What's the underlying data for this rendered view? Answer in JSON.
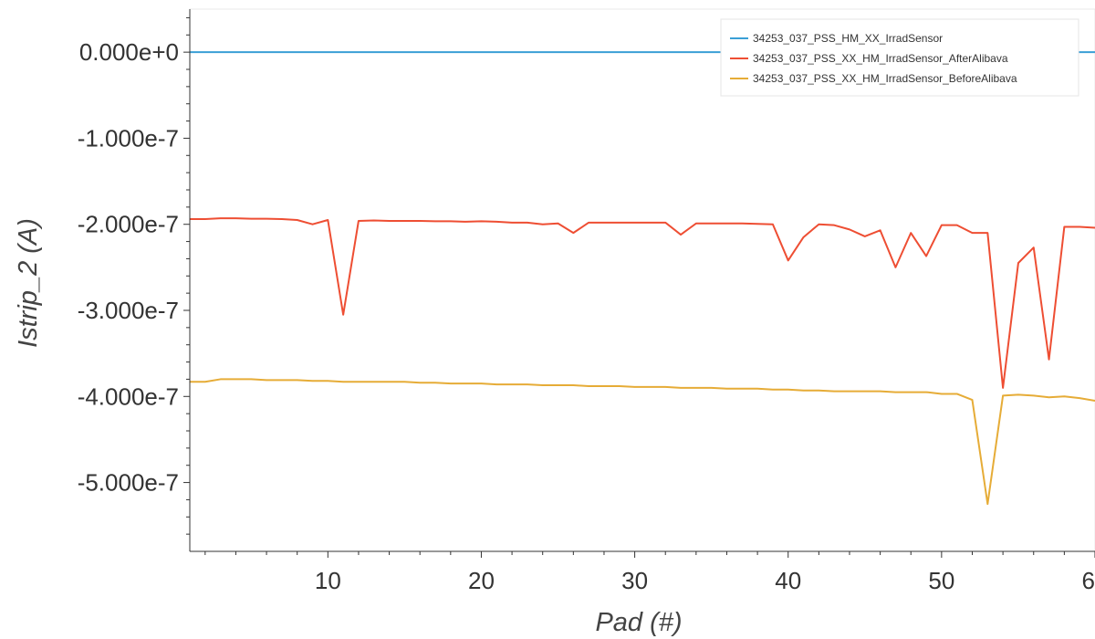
{
  "chart_data": {
    "type": "line",
    "title": "",
    "xlabel": "Pad (#)",
    "ylabel": "Istrip_2 (A)",
    "xlim": [
      1,
      60
    ],
    "ylim": [
      -5.8e-07,
      5e-08
    ],
    "x_ticks": [
      10,
      20,
      30,
      40,
      50,
      60
    ],
    "y_ticks": [
      0,
      -1e-07,
      -2e-07,
      -3e-07,
      -4e-07,
      -5e-07
    ],
    "x_tick_labels": [
      "10",
      "20",
      "30",
      "40",
      "50",
      "60"
    ],
    "y_tick_labels": [
      "0.000e+0",
      "-1.000e-7",
      "-2.000e-7",
      "-3.000e-7",
      "-4.000e-7",
      "-5.000e-7"
    ],
    "legend_position": "top-right",
    "grid": false,
    "x": [
      1,
      2,
      3,
      4,
      5,
      6,
      7,
      8,
      9,
      10,
      11,
      12,
      13,
      14,
      15,
      16,
      17,
      18,
      19,
      20,
      21,
      22,
      23,
      24,
      25,
      26,
      27,
      28,
      29,
      30,
      31,
      32,
      33,
      34,
      35,
      36,
      37,
      38,
      39,
      40,
      41,
      42,
      43,
      44,
      45,
      46,
      47,
      48,
      49,
      50,
      51,
      52,
      53,
      54,
      55,
      56,
      57,
      58,
      59,
      60
    ],
    "series": [
      {
        "name": "34253_037_PSS_HM_XX_IrradSensor",
        "color": "#3a9fd6",
        "values": [
          0,
          0,
          0,
          0,
          0,
          0,
          0,
          0,
          0,
          0,
          0,
          0,
          0,
          0,
          0,
          0,
          0,
          0,
          0,
          0,
          0,
          0,
          0,
          0,
          0,
          0,
          0,
          0,
          0,
          0,
          0,
          0,
          0,
          0,
          0,
          0,
          0,
          0,
          0,
          0,
          0,
          0,
          0,
          0,
          0,
          0,
          0,
          0,
          0,
          0,
          0,
          0,
          0,
          0,
          0,
          0,
          0,
          0,
          0,
          0
        ]
      },
      {
        "name": "34253_037_PSS_XX_HM_IrradSensor_AfterAlibava",
        "color": "#ee4e33",
        "values": [
          -1.94e-07,
          -1.94e-07,
          -1.93e-07,
          -1.93e-07,
          -1.935e-07,
          -1.935e-07,
          -1.94e-07,
          -1.95e-07,
          -2e-07,
          -1.95e-07,
          -3.05e-07,
          -1.96e-07,
          -1.955e-07,
          -1.96e-07,
          -1.96e-07,
          -1.96e-07,
          -1.965e-07,
          -1.965e-07,
          -1.97e-07,
          -1.965e-07,
          -1.97e-07,
          -1.98e-07,
          -1.98e-07,
          -2e-07,
          -1.99e-07,
          -2.1e-07,
          -1.98e-07,
          -1.98e-07,
          -1.98e-07,
          -1.98e-07,
          -1.98e-07,
          -1.98e-07,
          -2.12e-07,
          -1.99e-07,
          -1.99e-07,
          -1.99e-07,
          -1.99e-07,
          -1.995e-07,
          -2e-07,
          -2.42e-07,
          -2.15e-07,
          -2e-07,
          -2.01e-07,
          -2.06e-07,
          -2.14e-07,
          -2.07e-07,
          -2.5e-07,
          -2.1e-07,
          -2.37e-07,
          -2.01e-07,
          -2.01e-07,
          -2.1e-07,
          -2.1e-07,
          -3.9e-07,
          -2.45e-07,
          -2.27e-07,
          -3.57e-07,
          -2.03e-07,
          -2.03e-07,
          -2.04e-07
        ]
      },
      {
        "name": "34253_037_PSS_XX_HM_IrradSensor_BeforeAlibava",
        "color": "#e6ac37",
        "values": [
          -3.83e-07,
          -3.83e-07,
          -3.8e-07,
          -3.8e-07,
          -3.8e-07,
          -3.81e-07,
          -3.81e-07,
          -3.81e-07,
          -3.82e-07,
          -3.82e-07,
          -3.83e-07,
          -3.83e-07,
          -3.83e-07,
          -3.83e-07,
          -3.83e-07,
          -3.84e-07,
          -3.84e-07,
          -3.85e-07,
          -3.85e-07,
          -3.85e-07,
          -3.86e-07,
          -3.86e-07,
          -3.86e-07,
          -3.87e-07,
          -3.87e-07,
          -3.87e-07,
          -3.88e-07,
          -3.88e-07,
          -3.88e-07,
          -3.89e-07,
          -3.89e-07,
          -3.89e-07,
          -3.9e-07,
          -3.9e-07,
          -3.9e-07,
          -3.91e-07,
          -3.91e-07,
          -3.91e-07,
          -3.92e-07,
          -3.92e-07,
          -3.93e-07,
          -3.93e-07,
          -3.94e-07,
          -3.94e-07,
          -3.94e-07,
          -3.94e-07,
          -3.95e-07,
          -3.95e-07,
          -3.95e-07,
          -3.97e-07,
          -3.97e-07,
          -4.04e-07,
          -5.25e-07,
          -3.99e-07,
          -3.98e-07,
          -3.99e-07,
          -4.01e-07,
          -4e-07,
          -4.02e-07,
          -4.05e-07
        ]
      }
    ]
  }
}
